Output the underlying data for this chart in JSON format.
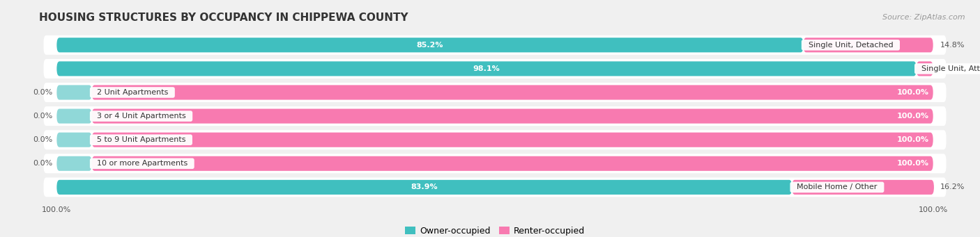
{
  "title": "HOUSING STRUCTURES BY OCCUPANCY IN CHIPPEWA COUNTY",
  "source": "Source: ZipAtlas.com",
  "categories": [
    "Single Unit, Detached",
    "Single Unit, Attached",
    "2 Unit Apartments",
    "3 or 4 Unit Apartments",
    "5 to 9 Unit Apartments",
    "10 or more Apartments",
    "Mobile Home / Other"
  ],
  "owner_values": [
    85.2,
    98.1,
    0.0,
    0.0,
    0.0,
    0.0,
    83.9
  ],
  "renter_values": [
    14.8,
    1.9,
    100.0,
    100.0,
    100.0,
    100.0,
    16.2
  ],
  "owner_color": "#40bfbf",
  "renter_color": "#f87ab0",
  "owner_stub_color": "#90d8d8",
  "renter_stub_color": "#f8b8d0",
  "row_bg_color": "#ffffff",
  "fig_bg_color": "#f0f0f0",
  "title_color": "#333333",
  "label_color": "#333333",
  "value_color_inside": "#ffffff",
  "value_color_outside": "#555555",
  "title_fontsize": 11,
  "source_fontsize": 8,
  "bar_label_fontsize": 8,
  "cat_label_fontsize": 8,
  "tick_fontsize": 8,
  "legend_fontsize": 9
}
